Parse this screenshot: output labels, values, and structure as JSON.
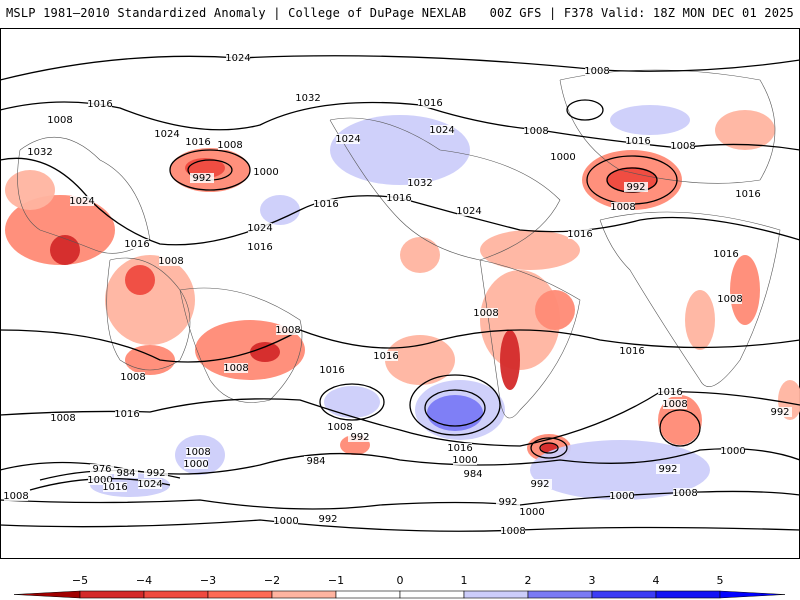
{
  "header": {
    "left_title": "MSLP 1981–2010 Standardized Anomaly | College of DuPage NEXLAB",
    "right_title": "00Z GFS | F378 Valid: 18Z MON DEC 01 2025"
  },
  "map": {
    "contour_labels": [
      "1024",
      "1008",
      "1016",
      "1008",
      "1032",
      "1016",
      "1024",
      "1016",
      "1008",
      "1032",
      "1024",
      "1024",
      "1008",
      "1016",
      "1008",
      "992",
      "1000",
      "1000",
      "992",
      "1024",
      "1016",
      "1032",
      "1016",
      "1024",
      "1008",
      "1016",
      "1024",
      "1016",
      "1016",
      "1016",
      "1008",
      "1016",
      "1008",
      "1008",
      "1008",
      "1016",
      "1016",
      "1008",
      "1016",
      "1008",
      "1016",
      "1008",
      "1016",
      "1008",
      "992",
      "1008",
      "992",
      "1008",
      "1000",
      "1016",
      "1000",
      "984",
      "1000",
      "992",
      "984",
      "976",
      "984",
      "992",
      "1000",
      "1016",
      "1024",
      "992",
      "992",
      "1000",
      "1008",
      "1008",
      "1000",
      "1000",
      "992",
      "1008"
    ]
  },
  "colorbar": {
    "ticks": [
      "−5",
      "−4",
      "−3",
      "−2",
      "−1",
      "0",
      "1",
      "2",
      "3",
      "4",
      "5"
    ],
    "colors": [
      "#a00000",
      "#d42a2a",
      "#ef4a3f",
      "#ff6a55",
      "#ffb4a0",
      "#ffffff",
      "#ffffff",
      "#cccdfa",
      "#7a7af5",
      "#3c3cf5",
      "#1414f5",
      "#0000ff"
    ]
  }
}
